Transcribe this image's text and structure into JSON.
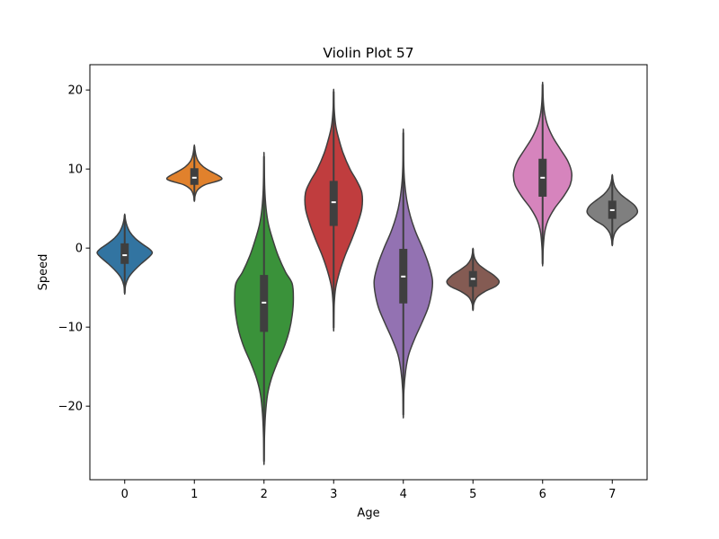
{
  "chart_data": {
    "type": "violin",
    "title": "Violin Plot 57",
    "xlabel": "Age",
    "ylabel": "Speed",
    "ylim": [
      -29.3,
      23.2
    ],
    "y_ticks": [
      20,
      10,
      0,
      -10,
      -20
    ],
    "y_tick_labels": [
      "20",
      "10",
      "0",
      "−10",
      "−20"
    ],
    "grid": false,
    "legend": "none",
    "categories": [
      "0",
      "1",
      "2",
      "3",
      "4",
      "5",
      "6",
      "7"
    ],
    "violins": [
      {
        "category": "0",
        "color": "#3274a1",
        "min": -5.7,
        "max": 4.2,
        "q1": -2.0,
        "median": -0.9,
        "q3": 0.6,
        "profile": [
          [
            -5.7,
            0.003
          ],
          [
            -4.7,
            0.03
          ],
          [
            -3.8,
            0.12
          ],
          [
            -3.0,
            0.28
          ],
          [
            -2.0,
            0.55
          ],
          [
            -1.2,
            0.8
          ],
          [
            -0.6,
            0.93
          ],
          [
            -0.1,
            0.83
          ],
          [
            0.5,
            0.6
          ],
          [
            1.2,
            0.36
          ],
          [
            2.0,
            0.18
          ],
          [
            2.8,
            0.08
          ],
          [
            3.5,
            0.03
          ],
          [
            4.2,
            0.003
          ]
        ]
      },
      {
        "category": "1",
        "color": "#e1812c",
        "min": 6.0,
        "max": 12.9,
        "q1": 8.0,
        "median": 8.9,
        "q3": 10.1,
        "profile": [
          [
            6.0,
            0.003
          ],
          [
            6.7,
            0.03
          ],
          [
            7.4,
            0.12
          ],
          [
            8.0,
            0.35
          ],
          [
            8.5,
            0.8
          ],
          [
            8.8,
            0.93
          ],
          [
            9.2,
            0.8
          ],
          [
            9.7,
            0.55
          ],
          [
            10.3,
            0.3
          ],
          [
            11.0,
            0.13
          ],
          [
            11.8,
            0.05
          ],
          [
            12.9,
            0.003
          ]
        ]
      },
      {
        "category": "2",
        "color": "#3a923a",
        "min": -27.0,
        "max": 11.6,
        "q1": -10.6,
        "median": -6.9,
        "q3": -3.4,
        "profile": [
          [
            -27.0,
            0.003
          ],
          [
            -24.0,
            0.015
          ],
          [
            -21.0,
            0.05
          ],
          [
            -18.5,
            0.12
          ],
          [
            -16.5,
            0.25
          ],
          [
            -14.5,
            0.45
          ],
          [
            -12.5,
            0.68
          ],
          [
            -10.5,
            0.85
          ],
          [
            -8.5,
            0.95
          ],
          [
            -6.5,
            0.99
          ],
          [
            -4.5,
            0.95
          ],
          [
            -3.0,
            0.72
          ],
          [
            -1.0,
            0.48
          ],
          [
            1.0,
            0.3
          ],
          [
            3.0,
            0.15
          ],
          [
            5.0,
            0.07
          ],
          [
            7.5,
            0.025
          ],
          [
            11.6,
            0.003
          ]
        ]
      },
      {
        "category": "3",
        "color": "#c03d3e",
        "min": -10.1,
        "max": 19.8,
        "q1": 2.8,
        "median": 5.8,
        "q3": 8.5,
        "profile": [
          [
            -10.1,
            0.003
          ],
          [
            -7.0,
            0.02
          ],
          [
            -5.0,
            0.07
          ],
          [
            -3.0,
            0.2
          ],
          [
            -1.0,
            0.38
          ],
          [
            1.0,
            0.6
          ],
          [
            3.0,
            0.8
          ],
          [
            5.0,
            0.95
          ],
          [
            7.0,
            0.95
          ],
          [
            8.5,
            0.78
          ],
          [
            10.0,
            0.55
          ],
          [
            12.0,
            0.32
          ],
          [
            14.0,
            0.16
          ],
          [
            15.5,
            0.07
          ],
          [
            17.5,
            0.02
          ],
          [
            19.8,
            0.003
          ]
        ]
      },
      {
        "category": "4",
        "color": "#9372b2",
        "min": -21.1,
        "max": 14.6,
        "q1": -7.0,
        "median": -3.6,
        "q3": -0.1,
        "profile": [
          [
            -21.1,
            0.003
          ],
          [
            -18.0,
            0.02
          ],
          [
            -15.5,
            0.08
          ],
          [
            -13.5,
            0.18
          ],
          [
            -11.5,
            0.38
          ],
          [
            -9.5,
            0.62
          ],
          [
            -7.5,
            0.84
          ],
          [
            -5.5,
            0.96
          ],
          [
            -4.0,
            0.98
          ],
          [
            -2.0,
            0.85
          ],
          [
            0.0,
            0.65
          ],
          [
            2.0,
            0.42
          ],
          [
            4.0,
            0.24
          ],
          [
            6.0,
            0.12
          ],
          [
            8.5,
            0.04
          ],
          [
            11.0,
            0.012
          ],
          [
            14.6,
            0.003
          ]
        ]
      },
      {
        "category": "5",
        "color": "#845b53",
        "min": -7.8,
        "max": -0.1,
        "q1": -4.9,
        "median": -3.9,
        "q3": -2.9,
        "profile": [
          [
            -7.8,
            0.003
          ],
          [
            -7.0,
            0.03
          ],
          [
            -6.2,
            0.14
          ],
          [
            -5.5,
            0.4
          ],
          [
            -4.8,
            0.78
          ],
          [
            -4.2,
            0.88
          ],
          [
            -3.5,
            0.72
          ],
          [
            -2.8,
            0.45
          ],
          [
            -2.1,
            0.2
          ],
          [
            -1.4,
            0.07
          ],
          [
            -0.7,
            0.02
          ],
          [
            -0.1,
            0.003
          ]
        ]
      },
      {
        "category": "6",
        "color": "#d684bd",
        "min": -2.0,
        "max": 20.7,
        "q1": 6.5,
        "median": 8.9,
        "q3": 11.3,
        "profile": [
          [
            -2.0,
            0.003
          ],
          [
            0.0,
            0.02
          ],
          [
            2.0,
            0.07
          ],
          [
            3.5,
            0.18
          ],
          [
            5.0,
            0.4
          ],
          [
            6.5,
            0.7
          ],
          [
            8.0,
            0.93
          ],
          [
            9.5,
            0.98
          ],
          [
            11.0,
            0.85
          ],
          [
            12.5,
            0.6
          ],
          [
            14.0,
            0.35
          ],
          [
            15.5,
            0.17
          ],
          [
            17.0,
            0.07
          ],
          [
            18.5,
            0.025
          ],
          [
            20.7,
            0.003
          ]
        ]
      },
      {
        "category": "7",
        "color": "#7f7f7f",
        "min": 0.4,
        "max": 9.2,
        "q1": 3.7,
        "median": 4.8,
        "q3": 6.0,
        "profile": [
          [
            0.4,
            0.003
          ],
          [
            1.2,
            0.03
          ],
          [
            2.0,
            0.1
          ],
          [
            2.8,
            0.28
          ],
          [
            3.5,
            0.58
          ],
          [
            4.2,
            0.8
          ],
          [
            4.7,
            0.85
          ],
          [
            5.4,
            0.75
          ],
          [
            6.1,
            0.52
          ],
          [
            6.8,
            0.28
          ],
          [
            7.6,
            0.11
          ],
          [
            8.4,
            0.035
          ],
          [
            9.2,
            0.003
          ]
        ]
      }
    ]
  }
}
